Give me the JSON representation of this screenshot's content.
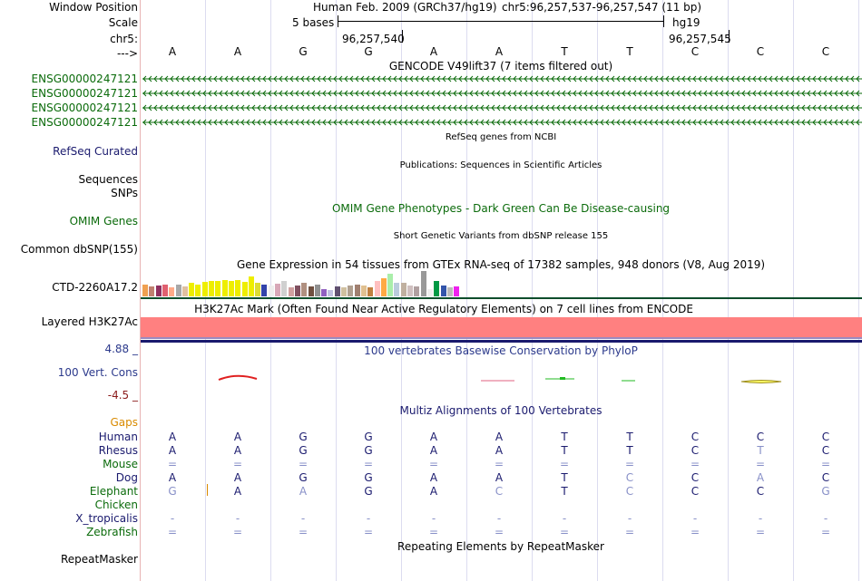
{
  "header": {
    "window_position_label": "Window Position",
    "scale_label": "Scale",
    "chr_label": "chr5:",
    "strand_label": "--->",
    "assembly": "Human Feb. 2009 (GRCh37/hg19)",
    "position": "chr5:96,257,537-96,257,547 (11 bp)",
    "scale_text": "5 bases",
    "db": "hg19",
    "coord_1": "96,257,540",
    "coord_2": "96,257,545"
  },
  "sequence": [
    "A",
    "A",
    "G",
    "G",
    "A",
    "A",
    "T",
    "T",
    "C",
    "C",
    "C"
  ],
  "gencode": {
    "title": "GENCODE V49lift37 (7 items filtered out)",
    "items": [
      "ENSG00000247121",
      "ENSG00000247121",
      "ENSG00000247121",
      "ENSG00000247121"
    ],
    "color": "#0b6b0b"
  },
  "refseq": {
    "label": "RefSeq Curated",
    "title": "RefSeq genes from NCBI"
  },
  "publications": {
    "label": "Sequences",
    "title": "Publications: Sequences in Scientific Articles"
  },
  "snps_label": "SNPs",
  "omim": {
    "label": "OMIM Genes",
    "title": "OMIM Gene Phenotypes - Dark Green Can Be Disease-causing"
  },
  "dbsnp": {
    "label": "Common dbSNP(155)",
    "title": "Short Genetic Variants from dbSNP release 155"
  },
  "gtex": {
    "label": "CTD-2260A17.2",
    "title": "Gene Expression in 54 tissues from GTEx RNA-seq of 17382 samples, 948 donors (V8, Aug 2019)",
    "bars": [
      {
        "c": "#f0a050",
        "v": 0.45
      },
      {
        "c": "#c08070",
        "v": 0.38
      },
      {
        "c": "#903060",
        "v": 0.42
      },
      {
        "c": "#e06070",
        "v": 0.48
      },
      {
        "c": "#ffaa88",
        "v": 0.36
      },
      {
        "c": "#a8a8a8",
        "v": 0.45
      },
      {
        "c": "#e0c0a0",
        "v": 0.4
      },
      {
        "c": "#eeee00",
        "v": 0.55
      },
      {
        "c": "#eeee00",
        "v": 0.48
      },
      {
        "c": "#eeee00",
        "v": 0.58
      },
      {
        "c": "#eeee00",
        "v": 0.62
      },
      {
        "c": "#eeee00",
        "v": 0.6
      },
      {
        "c": "#eeee00",
        "v": 0.64
      },
      {
        "c": "#eeee00",
        "v": 0.62
      },
      {
        "c": "#eeee00",
        "v": 0.66
      },
      {
        "c": "#eeee00",
        "v": 0.58
      },
      {
        "c": "#eeee00",
        "v": 0.78
      },
      {
        "c": "#dddd33",
        "v": 0.55
      },
      {
        "c": "#3344aa",
        "v": 0.48
      },
      {
        "c": "#eeeeee",
        "v": 0.42
      },
      {
        "c": "#d8a8b8",
        "v": 0.5
      },
      {
        "c": "#d0d0d0",
        "v": 0.6
      },
      {
        "c": "#d0a0a0",
        "v": 0.36
      },
      {
        "c": "#805060",
        "v": 0.44
      },
      {
        "c": "#b09080",
        "v": 0.55
      },
      {
        "c": "#705040",
        "v": 0.4
      },
      {
        "c": "#909090",
        "v": 0.46
      },
      {
        "c": "#9060c0",
        "v": 0.3
      },
      {
        "c": "#c0c0e0",
        "v": 0.25
      },
      {
        "c": "#605070",
        "v": 0.4
      },
      {
        "c": "#d0c0a0",
        "v": 0.36
      },
      {
        "c": "#b0a090",
        "v": 0.42
      },
      {
        "c": "#a08070",
        "v": 0.46
      },
      {
        "c": "#e0c090",
        "v": 0.42
      },
      {
        "c": "#c08040",
        "v": 0.35
      },
      {
        "c": "#ffc0c0",
        "v": 0.6
      },
      {
        "c": "#ffaa44",
        "v": 0.7
      },
      {
        "c": "#aaeeaa",
        "v": 0.88
      },
      {
        "c": "#bbccdd",
        "v": 0.52
      },
      {
        "c": "#c0b0a0",
        "v": 0.55
      },
      {
        "c": "#d0c0c0",
        "v": 0.44
      },
      {
        "c": "#b0a0a0",
        "v": 0.4
      },
      {
        "c": "#999999",
        "v": 1.0
      },
      {
        "c": "#eeeeee",
        "v": 0.3
      },
      {
        "c": "#009944",
        "v": 0.62
      },
      {
        "c": "#3355aa",
        "v": 0.44
      },
      {
        "c": "#bbbbbb",
        "v": 0.36
      },
      {
        "c": "#ee22ee",
        "v": 0.4
      }
    ]
  },
  "h3k27ac": {
    "label": "Layered H3K27Ac",
    "title": "H3K27Ac Mark (Often Found Near Active Regulatory Elements) on 7 cell lines from ENCODE",
    "color": "#ff8080"
  },
  "conservation": {
    "label": "100 Vert. Cons",
    "max": "4.88 _",
    "min": "-4.5 _",
    "title": "100 vertebrates Basewise Conservation by PhyloP"
  },
  "multiz": {
    "title": "Multiz Alignments of 100 Vertebrates",
    "gaps_label": "Gaps",
    "species": [
      {
        "name": "Human",
        "cls": "navy",
        "bases": [
          [
            "A",
            0
          ],
          [
            "A",
            0
          ],
          [
            "G",
            0
          ],
          [
            "G",
            0
          ],
          [
            "A",
            0
          ],
          [
            "A",
            0
          ],
          [
            "T",
            0
          ],
          [
            "T",
            0
          ],
          [
            "C",
            0
          ],
          [
            "C",
            0
          ],
          [
            "C",
            0
          ]
        ]
      },
      {
        "name": "Rhesus",
        "cls": "navy",
        "bases": [
          [
            "A",
            0
          ],
          [
            "A",
            0
          ],
          [
            "G",
            0
          ],
          [
            "G",
            0
          ],
          [
            "A",
            0
          ],
          [
            "A",
            0
          ],
          [
            "T",
            0
          ],
          [
            "T",
            0
          ],
          [
            "C",
            0
          ],
          [
            "T",
            1
          ],
          [
            "C",
            0
          ]
        ]
      },
      {
        "name": "Mouse",
        "cls": "green",
        "bases": [
          [
            "=",
            1
          ],
          [
            "=",
            1
          ],
          [
            "=",
            1
          ],
          [
            "=",
            1
          ],
          [
            "=",
            1
          ],
          [
            "=",
            1
          ],
          [
            "=",
            1
          ],
          [
            "=",
            1
          ],
          [
            "=",
            1
          ],
          [
            "=",
            1
          ],
          [
            "=",
            1
          ]
        ]
      },
      {
        "name": "Dog",
        "cls": "navy",
        "bases": [
          [
            "A",
            0
          ],
          [
            "A",
            0
          ],
          [
            "G",
            0
          ],
          [
            "G",
            0
          ],
          [
            "A",
            0
          ],
          [
            "A",
            0
          ],
          [
            "T",
            0
          ],
          [
            "C",
            1
          ],
          [
            "C",
            0
          ],
          [
            "A",
            1
          ],
          [
            "C",
            0
          ]
        ]
      },
      {
        "name": "Elephant",
        "cls": "green",
        "bases": [
          [
            "G",
            1
          ],
          [
            "A",
            0
          ],
          [
            "A",
            1
          ],
          [
            "G",
            0
          ],
          [
            "A",
            0
          ],
          [
            "C",
            1
          ],
          [
            "T",
            0
          ],
          [
            "C",
            1
          ],
          [
            "C",
            0
          ],
          [
            "C",
            0
          ],
          [
            "G",
            1
          ]
        ]
      },
      {
        "name": "Chicken",
        "cls": "green",
        "bases": [
          [
            "",
            0
          ],
          [
            "",
            0
          ],
          [
            "",
            0
          ],
          [
            "",
            0
          ],
          [
            "",
            0
          ],
          [
            "",
            0
          ],
          [
            "",
            0
          ],
          [
            "",
            0
          ],
          [
            "",
            0
          ],
          [
            "",
            0
          ],
          [
            "",
            0
          ]
        ]
      },
      {
        "name": "X_tropicalis",
        "cls": "navy",
        "bases": [
          [
            "-",
            1
          ],
          [
            "-",
            1
          ],
          [
            "-",
            1
          ],
          [
            "-",
            1
          ],
          [
            "-",
            1
          ],
          [
            "-",
            1
          ],
          [
            "-",
            1
          ],
          [
            "-",
            1
          ],
          [
            "-",
            1
          ],
          [
            "-",
            1
          ],
          [
            "-",
            1
          ]
        ]
      },
      {
        "name": "Zebrafish",
        "cls": "green",
        "bases": [
          [
            "=",
            1
          ],
          [
            "=",
            1
          ],
          [
            "=",
            1
          ],
          [
            "=",
            1
          ],
          [
            "=",
            1
          ],
          [
            "=",
            1
          ],
          [
            "=",
            1
          ],
          [
            "=",
            1
          ],
          [
            "=",
            1
          ],
          [
            "=",
            1
          ],
          [
            "=",
            1
          ]
        ]
      }
    ]
  },
  "repeatmasker": {
    "label": "RepeatMasker",
    "title": "Repeating Elements by RepeatMasker"
  }
}
